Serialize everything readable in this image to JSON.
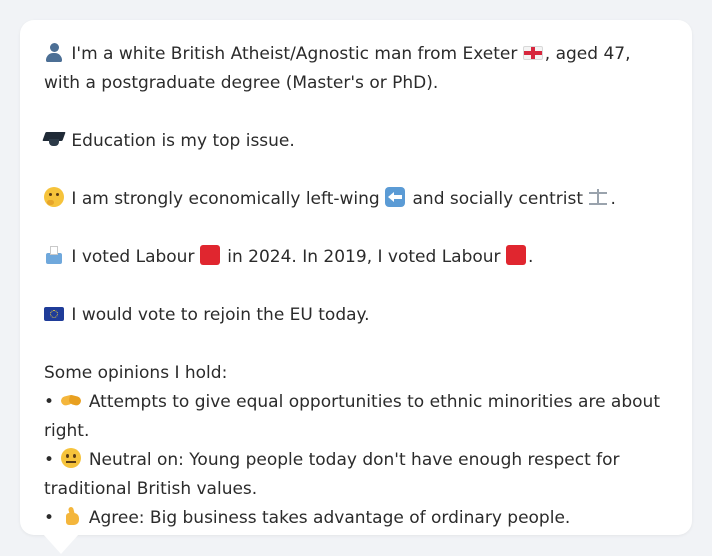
{
  "profile": {
    "intro": {
      "icon": "person-icon",
      "text_before_flag": "I'm a white British Atheist/Agnostic man from Exeter",
      "flag_icon": "england-flag-icon",
      "text_after_flag": ", aged 47, with a postgraduate degree (Master's or PhD)."
    },
    "education": {
      "icon": "graduation-cap-icon",
      "text": "Education is my top issue."
    },
    "politics": {
      "icon": "thinking-face-icon",
      "text_before": "I am strongly economically left-wing",
      "left_icon": "left-arrow-icon",
      "text_middle": "and socially centrist",
      "centrist_icon": "scales-icon",
      "text_end": "."
    },
    "voting": {
      "icon": "ballot-box-icon",
      "text_before": "I voted Labour",
      "party_icon": "red-square-icon",
      "party_color": "#e0262f",
      "text_middle": "in 2024. In 2019, I voted Labour",
      "text_end": "."
    },
    "eu": {
      "icon": "eu-flag-icon",
      "text": "I would vote to rejoin the EU today."
    },
    "opinions_heading": "Some opinions I hold:",
    "opinions": [
      {
        "bullet": "•",
        "icon": "handshake-icon",
        "text": "Attempts to give equal opportunities to ethnic minorities are about right."
      },
      {
        "bullet": "•",
        "icon": "neutral-face-icon",
        "text": "Neutral on: Young people today don't have enough respect for traditional British values."
      },
      {
        "bullet": "•",
        "icon": "thumbs-up-icon",
        "text": "Agree: Big business takes advantage of ordinary people."
      }
    ]
  }
}
